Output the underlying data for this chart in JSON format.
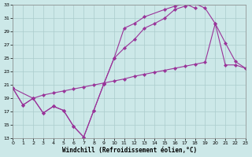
{
  "xlabel": "Windchill (Refroidissement éolien,°C)",
  "bg_color": "#cce8e8",
  "grid_color": "#aacccc",
  "line_color": "#993399",
  "xlim": [
    0,
    23
  ],
  "ylim": [
    13,
    33
  ],
  "xticks": [
    0,
    1,
    2,
    3,
    4,
    5,
    6,
    7,
    8,
    9,
    10,
    11,
    12,
    13,
    14,
    15,
    16,
    17,
    18,
    19,
    20,
    21,
    22,
    23
  ],
  "yticks": [
    13,
    15,
    17,
    19,
    21,
    23,
    25,
    27,
    29,
    31,
    33
  ],
  "curve1_x": [
    0,
    1,
    2,
    3,
    4,
    5,
    6,
    7,
    8,
    9,
    10,
    11,
    12,
    13,
    15,
    16,
    17,
    18
  ],
  "curve1_y": [
    20.5,
    18.0,
    19.0,
    16.8,
    17.8,
    17.2,
    14.8,
    13.2,
    17.2,
    21.2,
    25.0,
    29.5,
    30.2,
    31.2,
    32.3,
    32.8,
    33.2,
    32.5
  ],
  "curve2_x": [
    0,
    1,
    2,
    3,
    4,
    5,
    6,
    7,
    8,
    9,
    10,
    11,
    12,
    13,
    14,
    15,
    16,
    17,
    18,
    19,
    20,
    21,
    22,
    23
  ],
  "curve2_y": [
    20.5,
    18.0,
    19.0,
    16.8,
    17.8,
    17.2,
    14.8,
    13.2,
    17.2,
    21.2,
    25.0,
    26.5,
    27.8,
    29.5,
    30.2,
    31.0,
    32.3,
    32.8,
    33.2,
    32.5,
    30.2,
    27.3,
    24.5,
    23.5
  ],
  "curve3_x": [
    0,
    2,
    3,
    4,
    5,
    6,
    7,
    8,
    9,
    10,
    11,
    12,
    13,
    14,
    15,
    16,
    17,
    18,
    19,
    20,
    21,
    22,
    23
  ],
  "curve3_y": [
    20.5,
    19.0,
    19.5,
    19.8,
    20.1,
    20.4,
    20.7,
    21.0,
    21.3,
    21.6,
    21.9,
    22.3,
    22.6,
    22.9,
    23.2,
    23.5,
    23.8,
    24.1,
    24.4,
    30.2,
    24.0,
    24.0,
    23.5
  ]
}
